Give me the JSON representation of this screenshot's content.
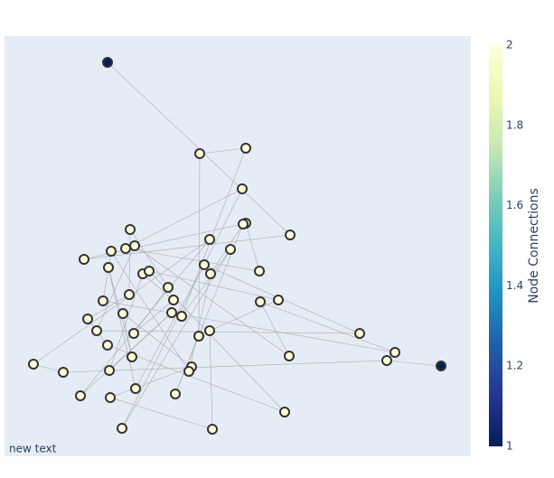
{
  "chart_data": {
    "type": "network",
    "x": [
      114,
      216,
      267,
      263,
      267,
      264,
      316,
      139,
      227,
      250,
      118,
      134,
      144,
      88,
      115,
      153,
      160,
      221,
      228,
      282,
      181,
      138,
      109,
      187,
      283,
      303,
      131,
      185,
      196,
      92,
      102,
      143,
      227,
      215,
      393,
      114,
      432,
      141,
      315,
      423,
      483,
      32,
      65,
      116,
      207,
      204,
      145,
      189,
      84,
      117,
      310,
      130,
      230
    ],
    "y": [
      436,
      335,
      341,
      296,
      258,
      257,
      245,
      251,
      240,
      229,
      227,
      230,
      233,
      218,
      209,
      202,
      205,
      212,
      202,
      205,
      187,
      179,
      172,
      173,
      171,
      173,
      158,
      159,
      155,
      152,
      139,
      136,
      139,
      133,
      136,
      123,
      115,
      110,
      111,
      106,
      100,
      102,
      93,
      95,
      99,
      94,
      75,
      69,
      67,
      65,
      49,
      31,
      30
    ],
    "connections": [
      1,
      2,
      2,
      2,
      2,
      2,
      2,
      2,
      2,
      2,
      2,
      2,
      2,
      2,
      2,
      2,
      2,
      2,
      2,
      2,
      2,
      2,
      2,
      2,
      2,
      2,
      2,
      2,
      2,
      2,
      2,
      2,
      2,
      2,
      2,
      2,
      2,
      2,
      2,
      2,
      1,
      2,
      2,
      2,
      2,
      2,
      2,
      2,
      2,
      2,
      2,
      2,
      2
    ],
    "path": [
      0,
      6,
      13,
      4,
      19,
      11,
      3,
      51,
      9,
      28,
      2,
      1,
      33,
      47,
      5,
      18,
      45,
      10,
      22,
      36,
      24,
      38,
      12,
      30,
      34,
      17,
      46,
      14,
      37,
      26,
      44,
      49,
      52,
      32,
      25,
      16,
      50,
      35,
      29,
      21,
      7,
      20,
      31,
      23,
      15,
      43,
      27,
      48,
      8,
      41,
      42,
      39,
      40
    ],
    "xlim": [
      0,
      516
    ],
    "ylim": [
      0,
      465
    ],
    "colorbar": {
      "title": "Node Connections",
      "lim": [
        1,
        2
      ],
      "ticks": [
        1,
        1.2,
        1.4,
        1.6,
        1.8,
        2
      ],
      "colorscale": [
        "#081d58",
        "#253494",
        "#225ea8",
        "#1d91c0",
        "#41b6c4",
        "#7fcdbb",
        "#c7e9b4",
        "#edf8b1",
        "#ffffd9"
      ]
    },
    "annotation": "new text"
  }
}
